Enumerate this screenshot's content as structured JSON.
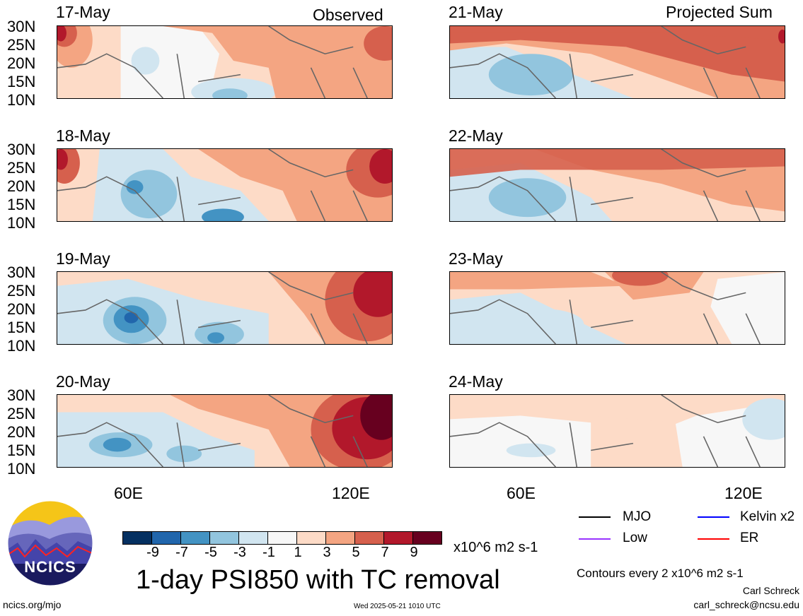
{
  "headers": {
    "observed": "Observed",
    "projected": "Projected Sum"
  },
  "panels": [
    {
      "date": "17-May"
    },
    {
      "date": "18-May"
    },
    {
      "date": "19-May"
    },
    {
      "date": "20-May"
    },
    {
      "date": "21-May"
    },
    {
      "date": "22-May"
    },
    {
      "date": "23-May"
    },
    {
      "date": "24-May"
    }
  ],
  "lat_labels": [
    "30N",
    "25N",
    "20N",
    "15N",
    "10N"
  ],
  "lon_labels": [
    "60E",
    "120E"
  ],
  "colorbar": {
    "colors": [
      "#053061",
      "#2166ac",
      "#4393c3",
      "#92c5de",
      "#d1e5f0",
      "#f7f7f7",
      "#fddbc7",
      "#f4a582",
      "#d6604d",
      "#b2182b",
      "#67001f"
    ],
    "labels": [
      "-9",
      "-7",
      "-5",
      "-3",
      "-1",
      "1",
      "3",
      "5",
      "7",
      "9"
    ],
    "units": "x10^6 m2 s-1"
  },
  "legend": {
    "mjo": "MJO",
    "kelvin": "Kelvin x2",
    "low": "Low",
    "er": "ER",
    "mjo_color": "#000000",
    "kelvin_color": "#0000ff",
    "low_color": "#9933ff",
    "er_color": "#ff0000",
    "contours": "Contours every 2 x10^6 m2 s-1"
  },
  "title": "1-day PSI850 with TC removal",
  "logo": {
    "text": "NCICS"
  },
  "footer": {
    "url": "ncics.org/mjo",
    "timestamp": "Wed 2025-05-21 1010 UTC",
    "author": "Carl Schreck",
    "email": "carl_schreck@ncsu.edu"
  }
}
